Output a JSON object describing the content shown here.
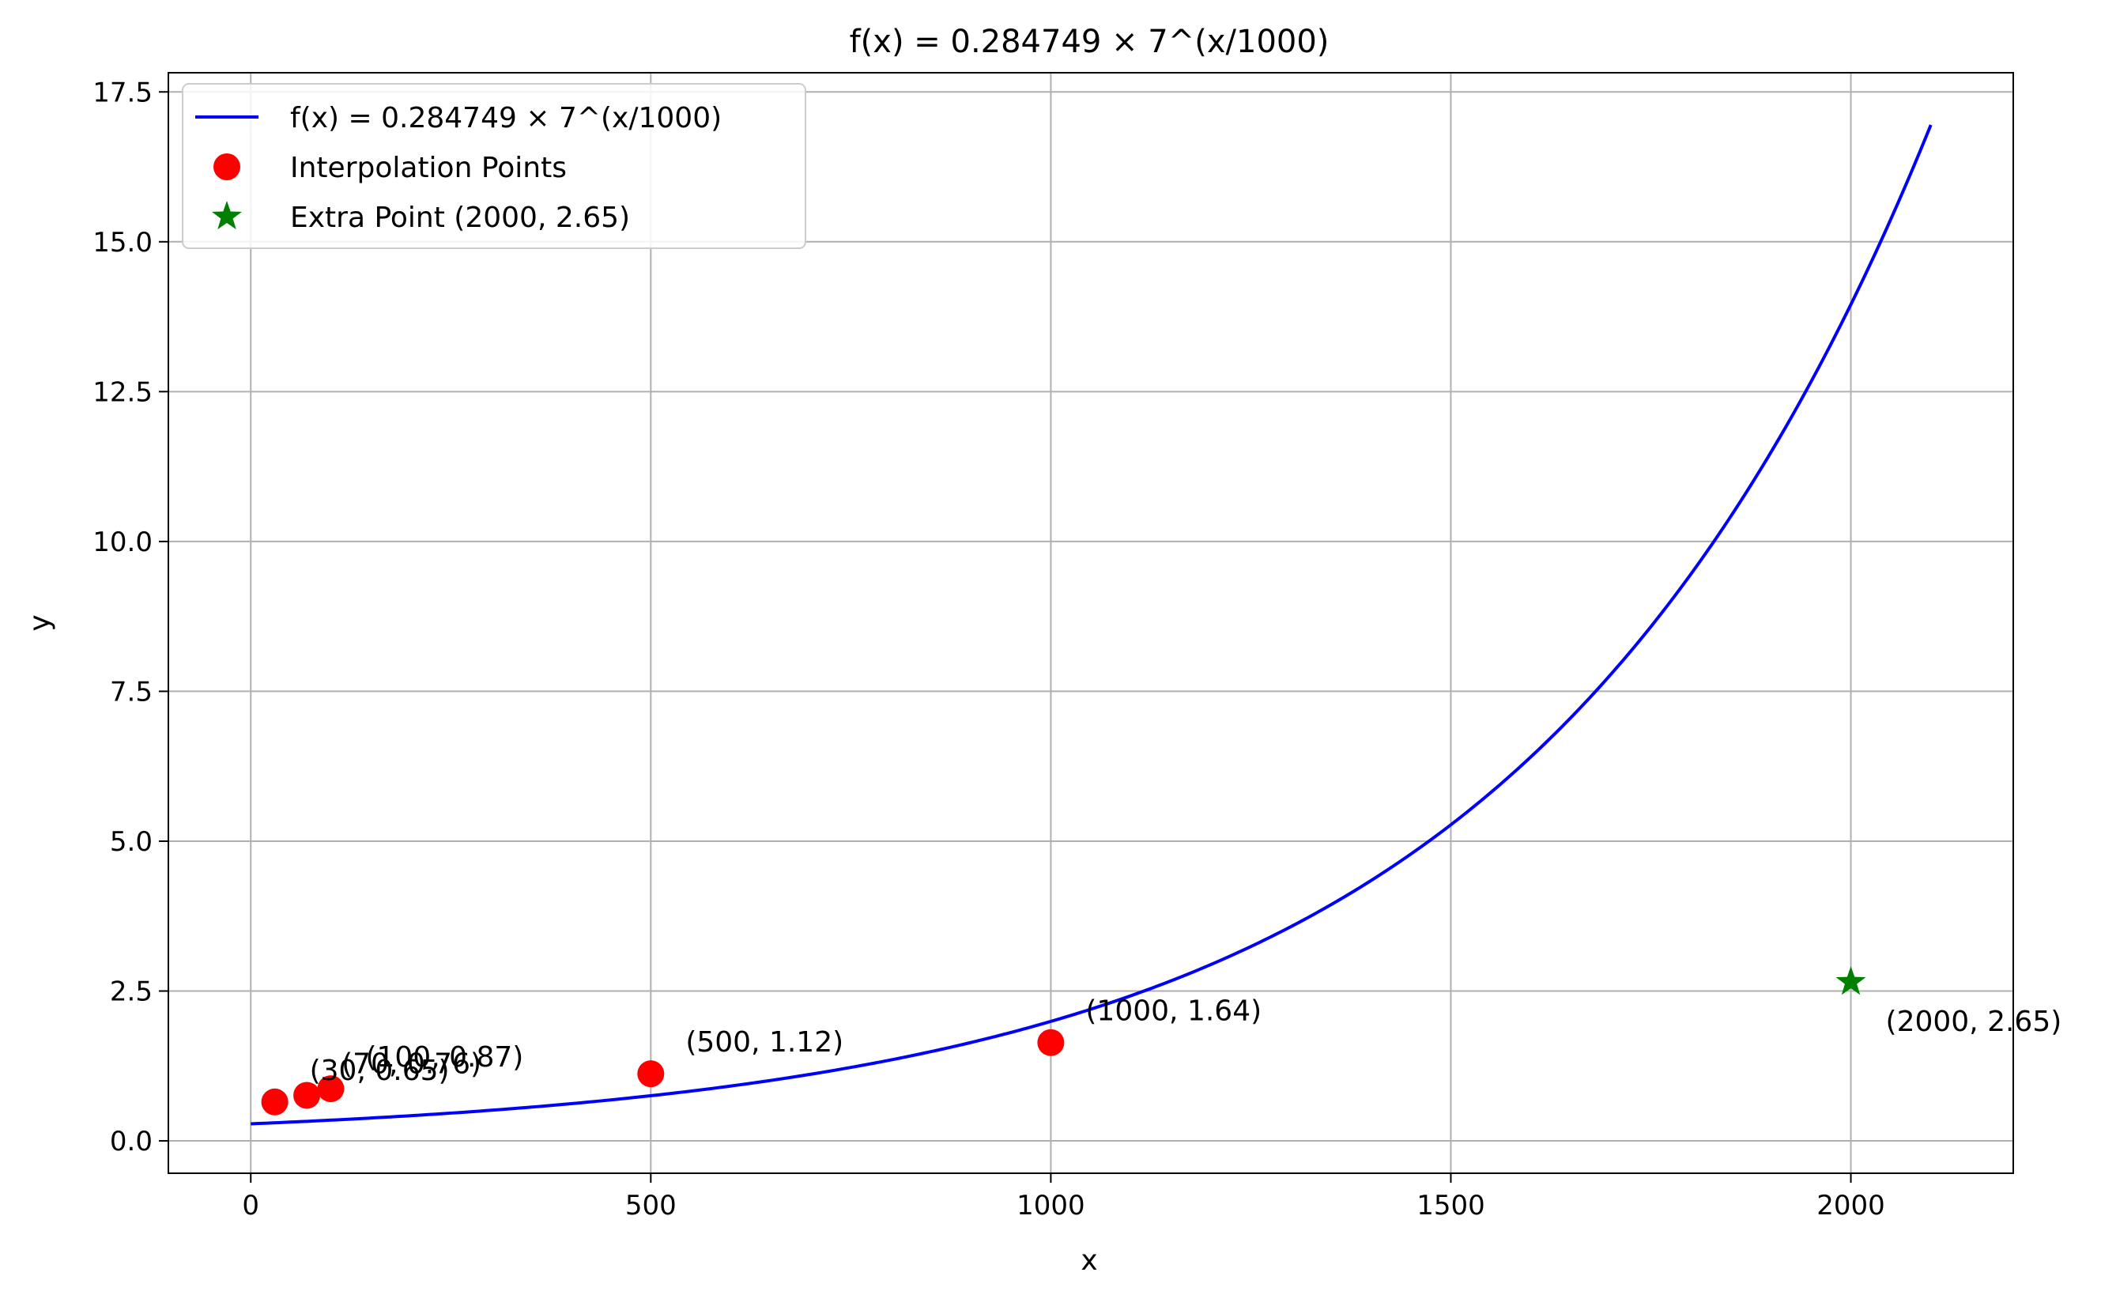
{
  "chart_data": {
    "type": "line",
    "title": "f(x) = 0.284749 × 7^(x/1000)",
    "xlabel": "x",
    "ylabel": "y",
    "xlim": [
      -103,
      2203
    ],
    "ylim": [
      -0.54,
      17.82
    ],
    "xticks": [
      0,
      500,
      1000,
      1500,
      2000
    ],
    "xtick_labels": [
      "0",
      "500",
      "1000",
      "1500",
      "2000"
    ],
    "yticks": [
      0,
      2.5,
      5,
      7.5,
      10,
      12.5,
      15,
      17.5
    ],
    "ytick_labels": [
      "0.0",
      "2.5",
      "5.0",
      "7.5",
      "10.0",
      "12.5",
      "15.0",
      "17.5"
    ],
    "grid": true,
    "legend_position": "upper-left",
    "colors": {
      "curve": "#0000ff",
      "points": "#ff0000",
      "extra": "#008000",
      "grid": "#b0b0b0"
    },
    "curve": {
      "label": "f(x) = 0.284749 × 7^(x/1000)",
      "base_coefficient": 0.284749,
      "base": 7,
      "x_range": [
        0,
        2100
      ]
    },
    "series": [
      {
        "name": "Interpolation Points",
        "marker": "circle",
        "points": [
          {
            "x": 30,
            "y": 0.65,
            "label": "(30, 0.65)"
          },
          {
            "x": 70,
            "y": 0.76,
            "label": "(70, 0.76)"
          },
          {
            "x": 100,
            "y": 0.87,
            "label": "(100, 0.87)"
          },
          {
            "x": 500,
            "y": 1.12,
            "label": "(500, 1.12)"
          },
          {
            "x": 1000,
            "y": 1.64,
            "label": "(1000, 1.64)"
          }
        ]
      },
      {
        "name": "Extra Point (2000, 2.65)",
        "marker": "star",
        "points": [
          {
            "x": 2000,
            "y": 2.65,
            "label": "(2000, 2.65)"
          }
        ]
      }
    ]
  }
}
